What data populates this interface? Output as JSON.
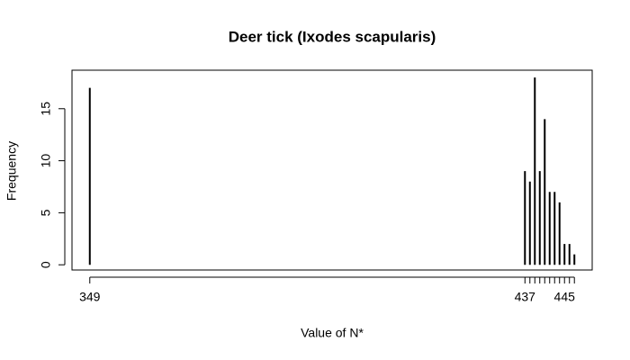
{
  "chart_data": {
    "type": "bar",
    "title": "Deer tick (Ixodes scapularis)",
    "x_label": "Value of N*",
    "y_label": "Frequency",
    "x": [
      349,
      437,
      438,
      439,
      440,
      441,
      442,
      443,
      444,
      445,
      446,
      447
    ],
    "values": [
      17,
      9,
      8,
      18,
      9,
      14,
      7,
      7,
      6,
      2,
      2,
      1
    ],
    "color": "#000000",
    "xlim": [
      345.4,
      450.6
    ],
    "xticks": [
      349,
      437,
      445
    ],
    "xminor": [
      438,
      439,
      440,
      441,
      442,
      443,
      444,
      446,
      447
    ],
    "ylim": [
      -0.5,
      18.7
    ],
    "yticks": [
      0,
      5,
      10,
      15
    ]
  }
}
